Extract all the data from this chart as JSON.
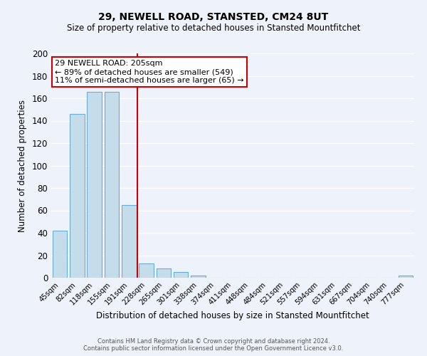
{
  "title1": "29, NEWELL ROAD, STANSTED, CM24 8UT",
  "title2": "Size of property relative to detached houses in Stansted Mountfitchet",
  "xlabel": "Distribution of detached houses by size in Stansted Mountfitchet",
  "ylabel": "Number of detached properties",
  "bar_labels": [
    "45sqm",
    "82sqm",
    "118sqm",
    "155sqm",
    "191sqm",
    "228sqm",
    "265sqm",
    "301sqm",
    "338sqm",
    "374sqm",
    "411sqm",
    "448sqm",
    "484sqm",
    "521sqm",
    "557sqm",
    "594sqm",
    "631sqm",
    "667sqm",
    "704sqm",
    "740sqm",
    "777sqm"
  ],
  "bar_values": [
    42,
    146,
    166,
    166,
    65,
    13,
    8,
    5,
    2,
    0,
    0,
    0,
    0,
    0,
    0,
    0,
    0,
    0,
    0,
    0,
    2
  ],
  "bar_color": "#c5dcea",
  "bar_edge_color": "#6aaed6",
  "vline_x": 4.5,
  "vline_color": "#cc0000",
  "annotation_title": "29 NEWELL ROAD: 205sqm",
  "annotation_line1": "← 89% of detached houses are smaller (549)",
  "annotation_line2": "11% of semi-detached houses are larger (65) →",
  "annotation_box_color": "#ffffff",
  "annotation_border_color": "#cc0000",
  "ylim": [
    0,
    200
  ],
  "yticks": [
    0,
    20,
    40,
    60,
    80,
    100,
    120,
    140,
    160,
    180,
    200
  ],
  "footer1": "Contains HM Land Registry data © Crown copyright and database right 2024.",
  "footer2": "Contains public sector information licensed under the Open Government Licence v3.0.",
  "background_color": "#eef2fa",
  "grid_color": "#ffffff",
  "plot_bg_color": "#eef2fa"
}
